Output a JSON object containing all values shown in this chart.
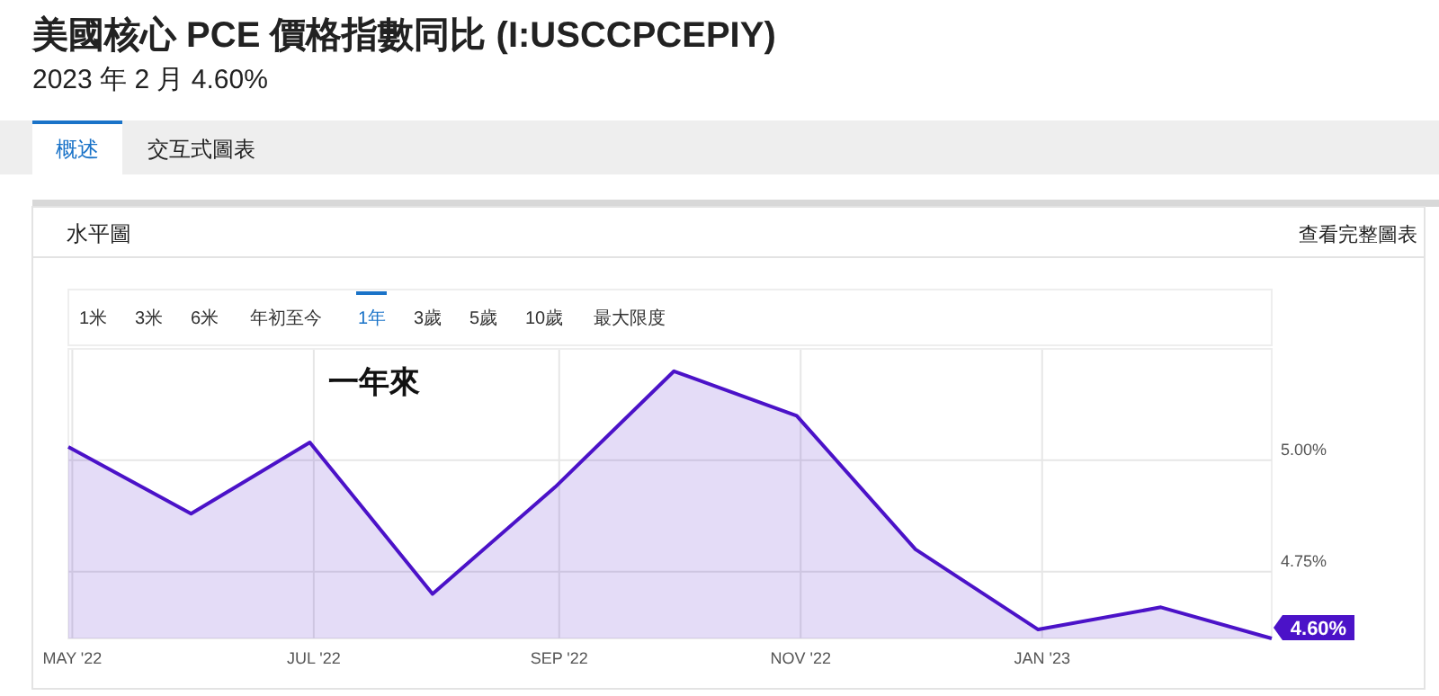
{
  "chart_data": {
    "type": "area",
    "title": "美國核心 PCE 價格指數同比 (I:USCCPCEPIY)",
    "subtitle": "2023 年 2 月 4.60%",
    "annotations": [
      "概述",
      "交互式圖表",
      "水平圖",
      "查看完整圖表",
      "1米",
      "3米",
      "6米",
      "年初至今",
      "1年",
      "3歲",
      "5歲",
      "10歲",
      "最大限度",
      "一年來"
    ],
    "x": [
      "2022-04-30",
      "2022-05-31",
      "2022-06-30",
      "2022-07-31",
      "2022-08-31",
      "2022-09-30",
      "2022-10-31",
      "2022-11-30",
      "2022-12-31",
      "2023-01-31",
      "2023-02-28"
    ],
    "series": [
      {
        "color": "#4b12c8",
        "values": [
          5.03,
          4.88,
          5.04,
          4.7,
          4.94,
          5.2,
          5.1,
          4.8,
          4.62,
          4.67,
          4.6
        ],
        "value_labels": [
          null,
          null,
          null,
          null,
          null,
          null,
          null,
          null,
          null,
          null,
          "4.60%"
        ]
      }
    ],
    "xlim": [
      "2022-04-30",
      "2023-02-28"
    ],
    "xticks": [
      {
        "value": "2022-05-01",
        "label": "MAY '22"
      },
      {
        "value": "2022-07-01",
        "label": "JUL '22"
      },
      {
        "value": "2022-09-01",
        "label": "SEP '22"
      },
      {
        "value": "2022-11-01",
        "label": "NOV '22"
      },
      {
        "value": "2023-01-01",
        "label": "JAN '23"
      }
    ],
    "ylim": [
      4.6,
      5.25
    ],
    "yticks": [
      {
        "value": 5,
        "label": "5.00%"
      },
      {
        "value": 4.75,
        "label": "4.75%"
      }
    ],
    "grid": true
  }
}
